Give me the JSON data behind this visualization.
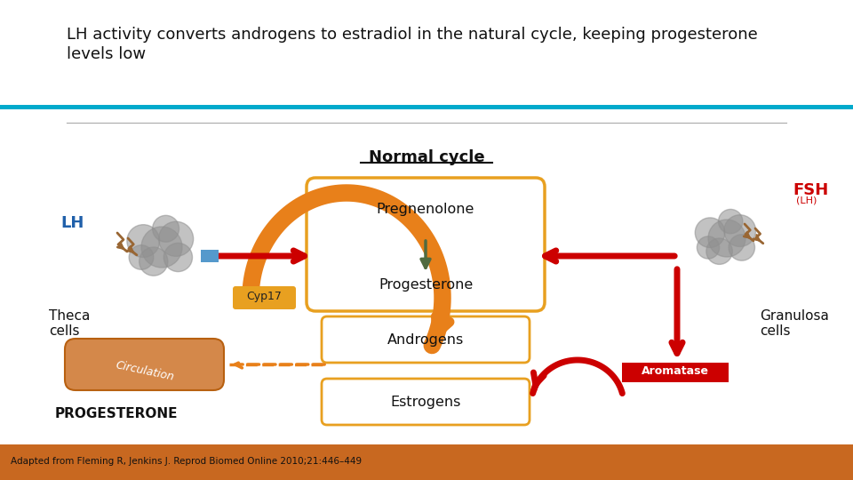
{
  "title_line1": "LH activity converts androgens to estradiol in the natural cycle, keeping progesterone",
  "title_line2": "levels low",
  "title_fontsize": 13,
  "normal_cycle_label": "Normal cycle",
  "lh_label": "LH",
  "fsh_label": "FSH",
  "fsh_sub": "(LH)",
  "theca_label": "Theca\ncells",
  "granulosa_label": "Granulosa\ncells",
  "pregnenolone_label": "Pregnenolone",
  "progesterone_label": "Progesterone",
  "androgens_label": "Androgens",
  "estrogens_label": "Estrogens",
  "cyp17_label": "Cyp17",
  "aromatase_label": "Aromatase",
  "circulation_label": "Circulation",
  "progesterone_big_label": "PROGESTERONE",
  "citation": "Adapted from Fleming R, Jenkins J. Reprod Biomed Online 2010;21:446–449",
  "bg_color": "#ffffff",
  "footer_bg": "#C86820",
  "teal_line_color": "#00AACC",
  "gray_line_color": "#AAAAAA",
  "box_edge_color": "#E8A020",
  "box_fill_color": "#FFFFFF",
  "red_arrow_color": "#CC0000",
  "orange_arrow_color": "#E8801A",
  "dark_green_arrow_color": "#506B40",
  "cyp17_bg": "#E8A020",
  "aromatase_bg": "#CC0000",
  "lh_color": "#2060AA",
  "fsh_color": "#CC0000",
  "smoke_color": "#909090",
  "lightning_color": "#996633",
  "circulation_color": "#D4884A",
  "circulation_edge": "#B86010",
  "blue_rect_color": "#5599CC"
}
